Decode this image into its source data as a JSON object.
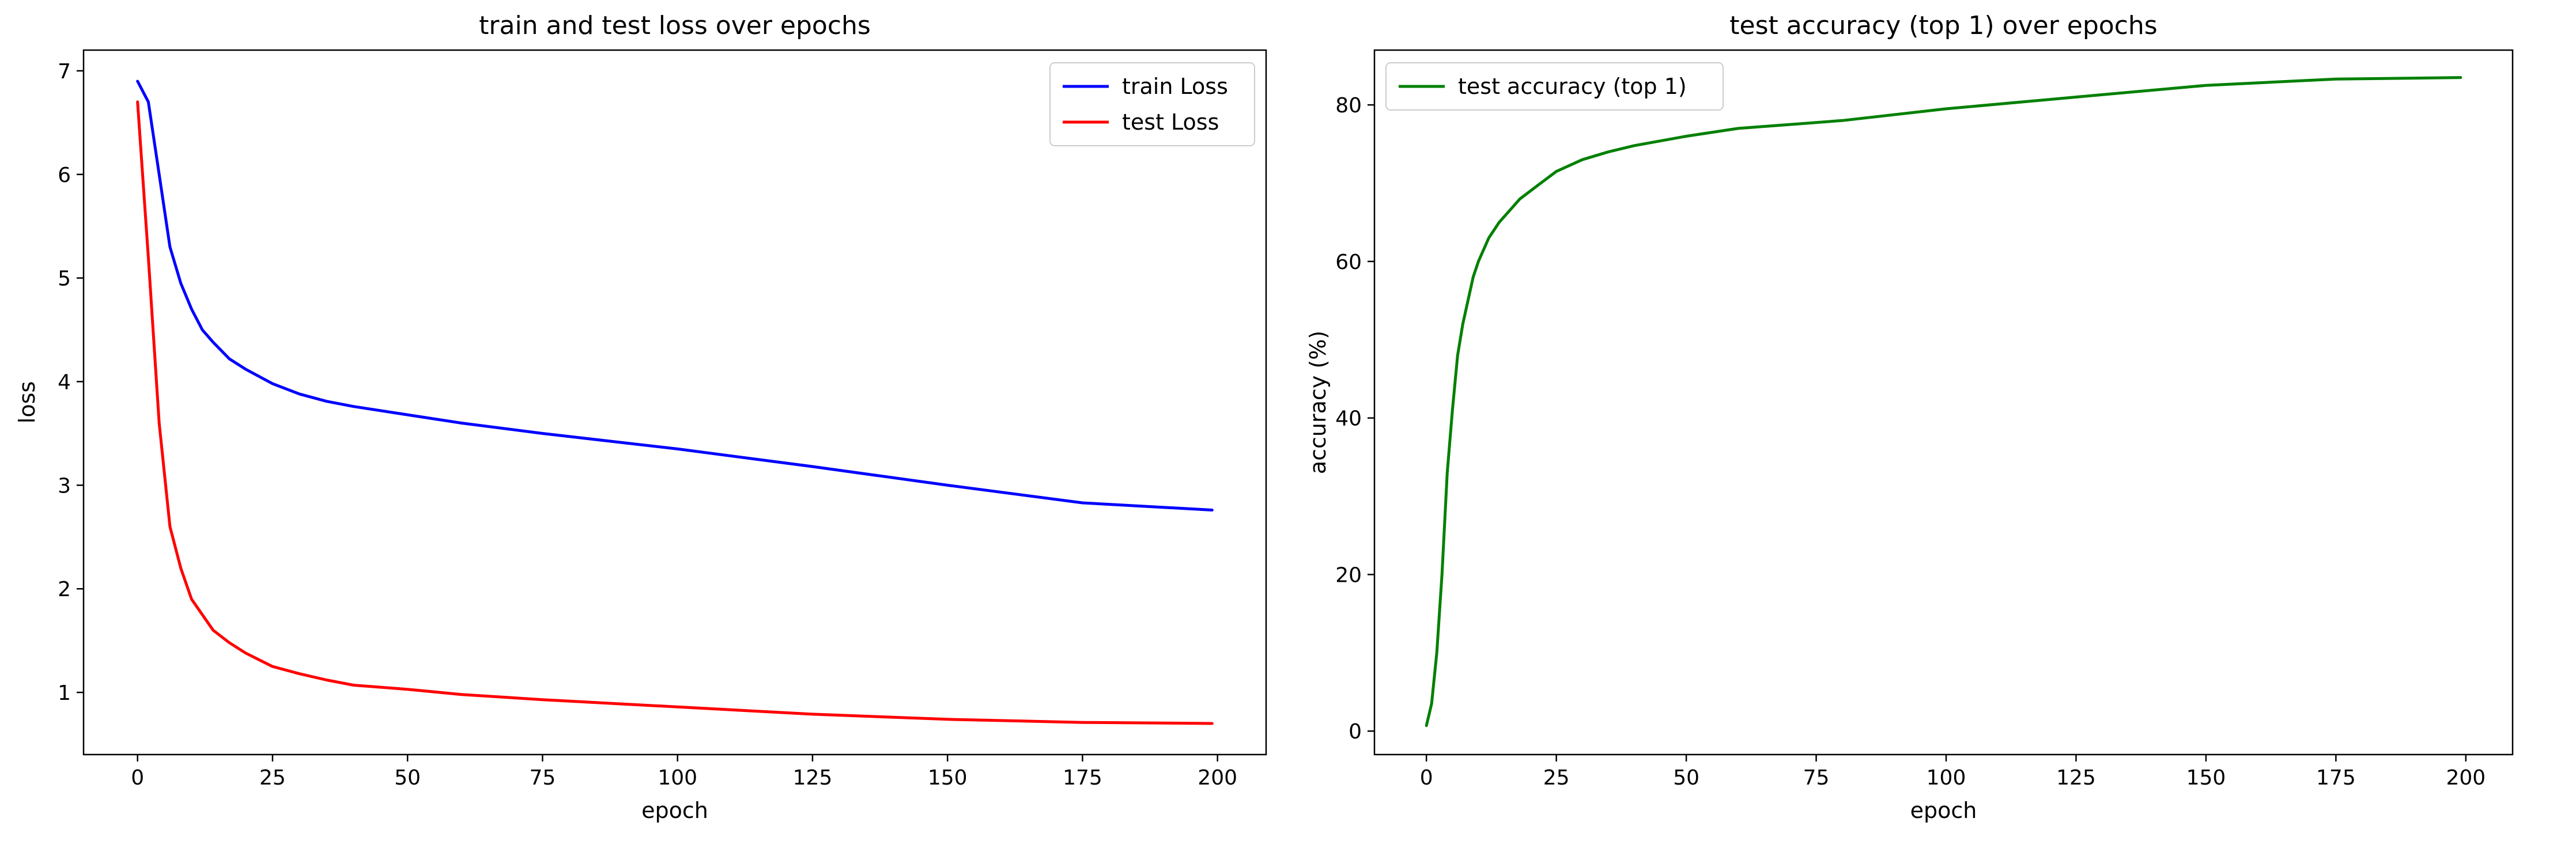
{
  "chart_data": [
    {
      "type": "line",
      "title": "train and test loss over epochs",
      "xlabel": "epoch",
      "ylabel": "loss",
      "xlim": [
        -10,
        209
      ],
      "ylim": [
        0.4,
        7.2
      ],
      "xticks": [
        0,
        25,
        50,
        75,
        100,
        125,
        150,
        175,
        200
      ],
      "yticks": [
        1,
        2,
        3,
        4,
        5,
        6,
        7
      ],
      "grid": false,
      "legend_position": "top-right",
      "x": [
        0,
        2,
        4,
        6,
        8,
        10,
        12,
        14,
        17,
        20,
        25,
        30,
        35,
        40,
        50,
        60,
        75,
        100,
        125,
        150,
        175,
        199
      ],
      "series": [
        {
          "name": "train Loss",
          "color": "#0000ff",
          "values": [
            6.9,
            6.7,
            6.0,
            5.3,
            4.95,
            4.7,
            4.5,
            4.38,
            4.22,
            4.12,
            3.98,
            3.88,
            3.81,
            3.76,
            3.68,
            3.6,
            3.5,
            3.35,
            3.18,
            3.0,
            2.83,
            2.76
          ]
        },
        {
          "name": "test Loss",
          "color": "#ff0000",
          "values": [
            6.7,
            5.2,
            3.6,
            2.6,
            2.2,
            1.9,
            1.75,
            1.6,
            1.48,
            1.38,
            1.25,
            1.18,
            1.12,
            1.07,
            1.03,
            0.98,
            0.93,
            0.86,
            0.79,
            0.74,
            0.71,
            0.7
          ]
        }
      ]
    },
    {
      "type": "line",
      "title": "test accuracy (top 1) over epochs",
      "xlabel": "epoch",
      "ylabel": "accuracy (%)",
      "xlim": [
        -10,
        209
      ],
      "ylim": [
        -3,
        87
      ],
      "xticks": [
        0,
        25,
        50,
        75,
        100,
        125,
        150,
        175,
        200
      ],
      "yticks": [
        0,
        20,
        40,
        60,
        80
      ],
      "grid": false,
      "legend_position": "top-left",
      "x": [
        0,
        1,
        2,
        3,
        4,
        5,
        6,
        7,
        8,
        9,
        10,
        12,
        14,
        16,
        18,
        20,
        25,
        30,
        35,
        40,
        50,
        60,
        70,
        80,
        100,
        125,
        150,
        175,
        199
      ],
      "series": [
        {
          "name": "test accuracy (top 1)",
          "color": "#008000",
          "values": [
            0.7,
            3.5,
            10,
            20,
            33,
            41,
            48,
            52,
            55,
            58,
            60,
            63,
            65,
            66.5,
            68,
            69,
            71.5,
            73,
            74,
            74.8,
            76,
            77,
            77.5,
            78,
            79.5,
            81,
            82.5,
            83.3,
            83.5
          ]
        }
      ]
    }
  ]
}
